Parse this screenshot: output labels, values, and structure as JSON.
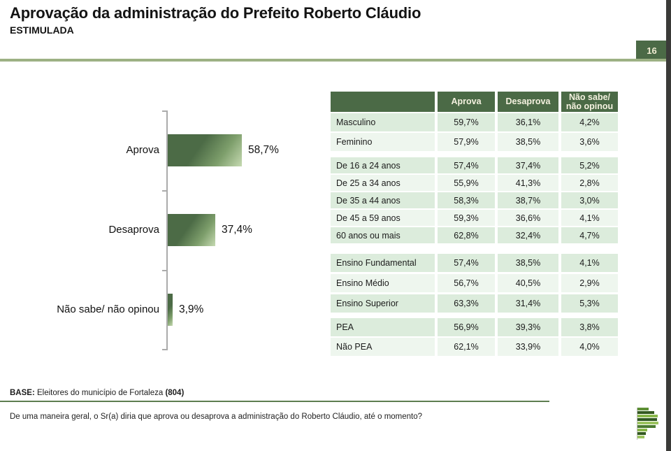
{
  "header": {
    "title": "Aprovação da administração do Prefeito Roberto Cláudio",
    "subtitle": "ESTIMULADA",
    "page_number": "16"
  },
  "colors": {
    "accent_dark_green": "#4b6a46",
    "rule_sage_green": "#9db184",
    "rule_footer_green": "#5e7e50",
    "stripe_dark": "#dcecdc",
    "stripe_light": "#eef6ee",
    "badge_text": "#f0ecd2",
    "right_border": "#3a3a38"
  },
  "chart_data": {
    "type": "bar",
    "orientation": "horizontal",
    "categories": [
      "Aprova",
      "Desaprova",
      "Não sabe/ não opinou"
    ],
    "values": [
      58.7,
      37.4,
      3.9
    ],
    "value_labels": [
      "58,7%",
      "37,4%",
      "3,9%"
    ],
    "title": "",
    "xlabel": "",
    "ylabel": "",
    "xlim": [
      0,
      100
    ],
    "grid": false,
    "legend": false,
    "bar_color": "#4c6b46",
    "bar_gradient_end": "#c6dab2"
  },
  "table": {
    "header": [
      "",
      "Aprova",
      "Desaprova",
      "Não sabe/\nnão opinou"
    ],
    "sections": [
      {
        "rows": [
          [
            "Masculino",
            "59,7%",
            "36,1%",
            "4,2%"
          ],
          [
            "Feminino",
            "57,9%",
            "38,5%",
            "3,6%"
          ]
        ]
      },
      {
        "rows": [
          [
            "De 16 a 24 anos",
            "57,4%",
            "37,4%",
            "5,2%"
          ],
          [
            "De 25 a 34 anos",
            "55,9%",
            "41,3%",
            "2,8%"
          ],
          [
            "De 35 a 44 anos",
            "58,3%",
            "38,7%",
            "3,0%"
          ],
          [
            "De 45 a 59 anos",
            "59,3%",
            "36,6%",
            "4,1%"
          ],
          [
            "60 anos ou mais",
            "62,8%",
            "32,4%",
            "4,7%"
          ]
        ]
      },
      {
        "rows": [
          [
            "Ensino Fundamental",
            "57,4%",
            "38,5%",
            "4,1%"
          ],
          [
            "Ensino Médio",
            "56,7%",
            "40,5%",
            "2,9%"
          ],
          [
            "Ensino Superior",
            "63,3%",
            "31,4%",
            "5,3%"
          ]
        ]
      },
      {
        "rows": [
          [
            "PEA",
            "56,9%",
            "39,3%",
            "3,8%"
          ],
          [
            "Não PEA",
            "62,1%",
            "33,9%",
            "4,0%"
          ]
        ]
      }
    ]
  },
  "footer": {
    "base_label": "BASE:",
    "base_text": " Eleitores do município de Fortaleza ",
    "base_count": "(804)",
    "question": "De uma maneira geral, o Sr(a) diria que aprova ou desaprova a administração do Roberto Cláudio, até o momento?"
  },
  "logo": {
    "name": "parana-pesquisas-logo",
    "bars": [
      {
        "w": 16,
        "color": "#5d8f35"
      },
      {
        "w": 24,
        "color": "#33591f"
      },
      {
        "w": 29,
        "color": "#8ab84a"
      },
      {
        "w": 28,
        "color": "#2f5720"
      },
      {
        "w": 30,
        "color": "#9cc45f"
      },
      {
        "w": 26,
        "color": "#4a7a2f"
      },
      {
        "w": 14,
        "color": "#8ab84a"
      },
      {
        "w": 12,
        "color": "#33591f"
      },
      {
        "w": 10,
        "color": "#9cc45f"
      }
    ]
  }
}
